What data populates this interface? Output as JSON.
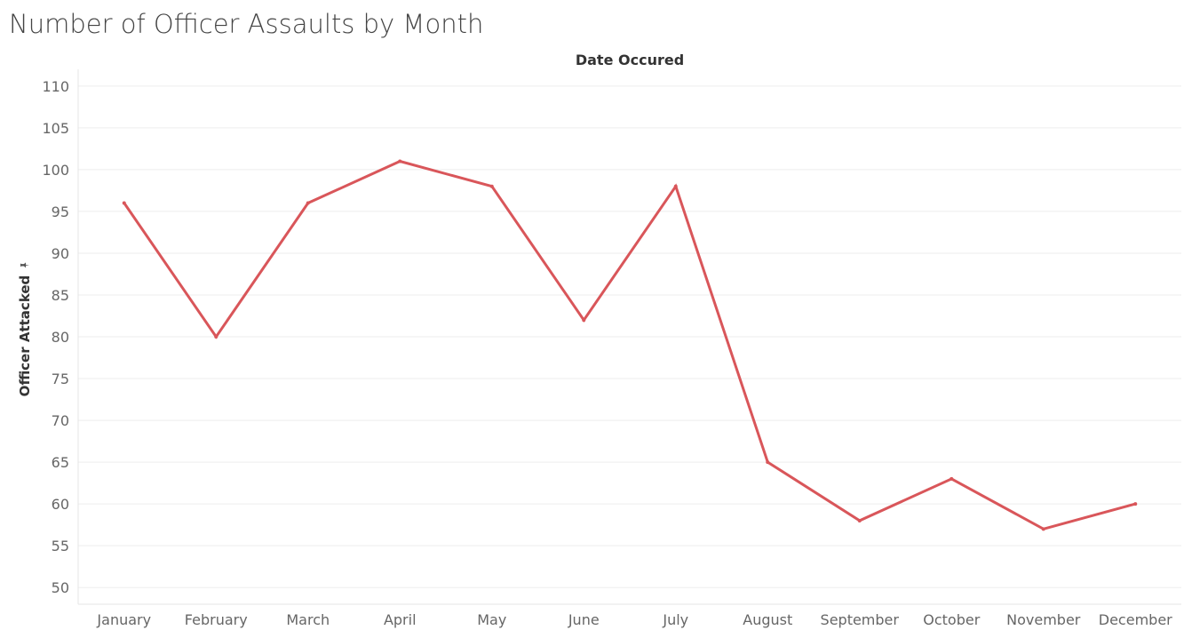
{
  "chart_data": {
    "type": "line",
    "title": "Number of Officer Assaults by Month",
    "x_header": "Date Occured",
    "ylabel": "Officer Attacked",
    "categories": [
      "January",
      "February",
      "March",
      "April",
      "May",
      "June",
      "July",
      "August",
      "September",
      "October",
      "November",
      "December"
    ],
    "values": [
      96,
      80,
      96,
      101,
      98,
      82,
      98,
      65,
      58,
      63,
      57,
      60
    ],
    "ylim": [
      50,
      110
    ],
    "yticks": [
      50,
      55,
      60,
      65,
      70,
      75,
      80,
      85,
      90,
      95,
      100,
      105,
      110
    ],
    "grid": true,
    "line_color": "#d9565a",
    "axis_pin_icon": "pin-icon"
  }
}
